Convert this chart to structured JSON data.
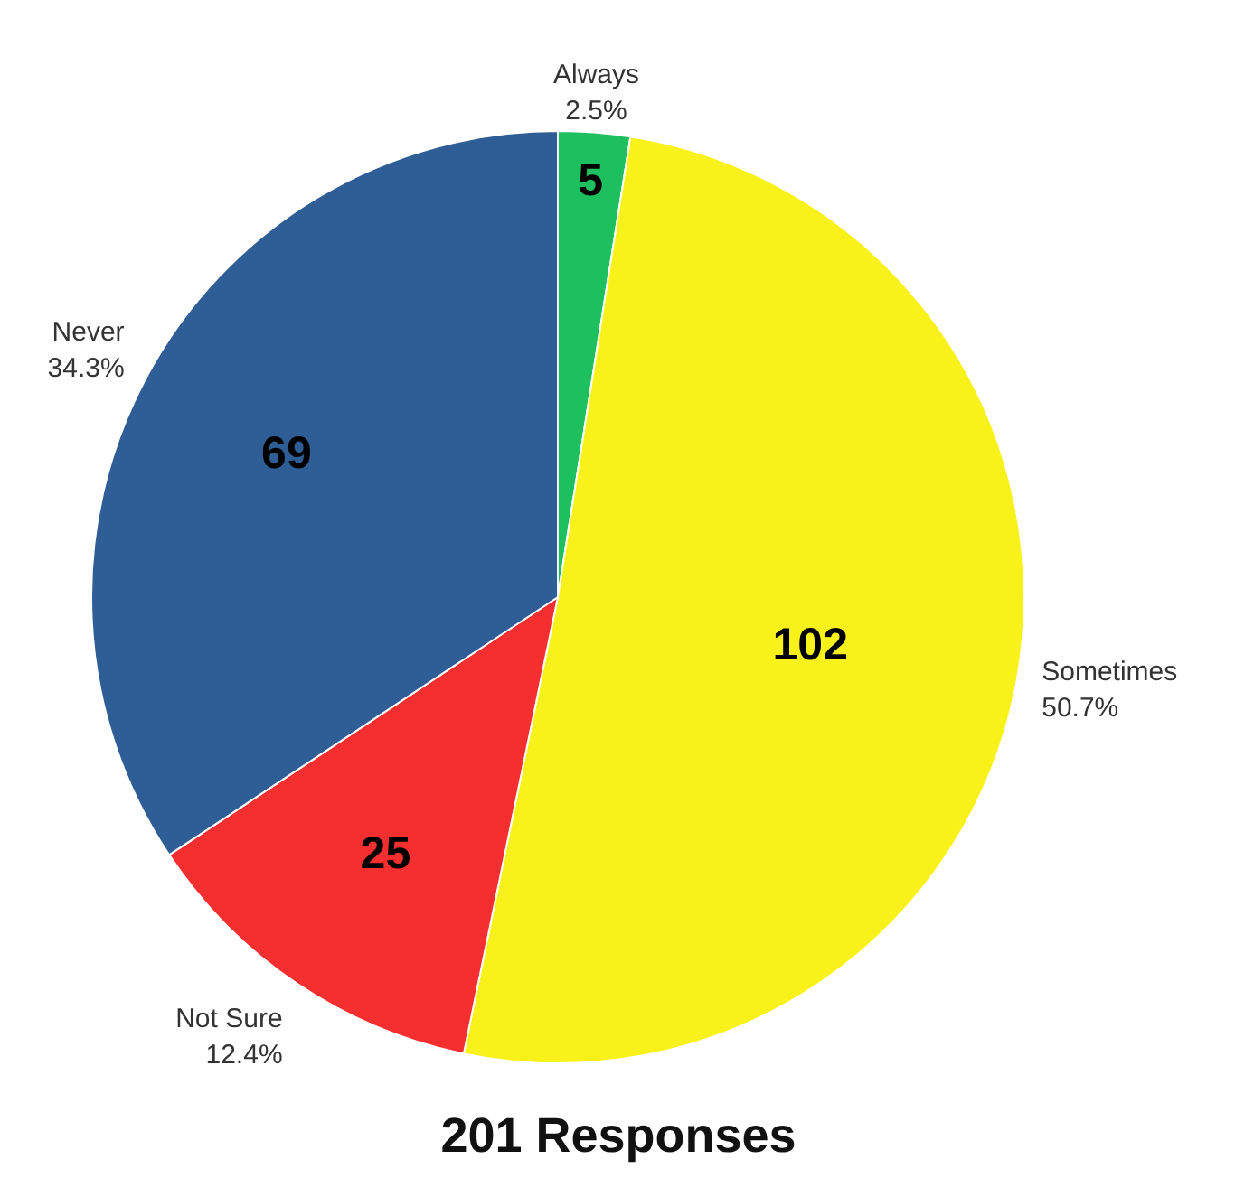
{
  "chart_data": {
    "type": "pie",
    "title": "201 Responses",
    "categories": [
      "Always",
      "Sometimes",
      "Not Sure",
      "Never"
    ],
    "values": [
      5,
      102,
      25,
      69
    ],
    "colors": [
      "#1dbf5e",
      "#f9f21a",
      "#f52f2f",
      "#2f5d95"
    ],
    "data_labels": true,
    "annotations": [
      "2.5%",
      "50.7%",
      "12.4%",
      "34.3%"
    ]
  }
}
